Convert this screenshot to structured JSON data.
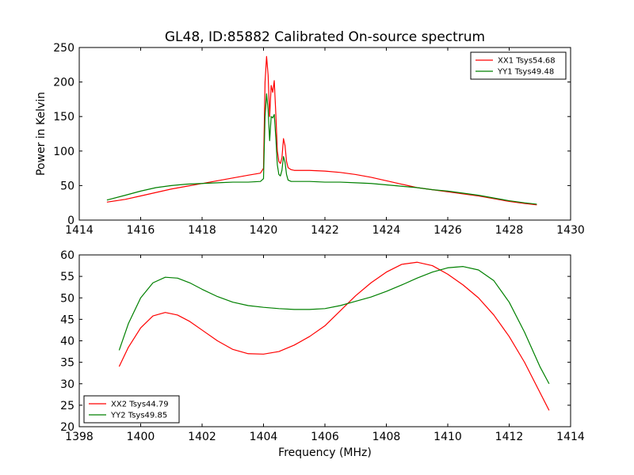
{
  "figure": {
    "background": "#ffffff"
  },
  "chart_data": [
    {
      "type": "line",
      "title": "GL48, ID:85882 Calibrated On-source spectrum",
      "xlabel": "",
      "ylabel": "Power in Kelvin",
      "xlim": [
        1414,
        1430
      ],
      "ylim": [
        0,
        250
      ],
      "xticks": [
        1414,
        1416,
        1418,
        1420,
        1422,
        1424,
        1426,
        1428,
        1430
      ],
      "yticks": [
        0,
        50,
        100,
        150,
        200,
        250
      ],
      "grid": false,
      "legend_position": "top-right",
      "series": [
        {
          "name": "XX1 Tsys54.68",
          "color": "#ff0000",
          "x": [
            1414.9,
            1415.5,
            1416.0,
            1416.5,
            1417.0,
            1417.5,
            1418.0,
            1418.5,
            1419.0,
            1419.5,
            1419.9,
            1420.0,
            1420.05,
            1420.1,
            1420.15,
            1420.2,
            1420.25,
            1420.3,
            1420.35,
            1420.4,
            1420.45,
            1420.5,
            1420.55,
            1420.6,
            1420.65,
            1420.7,
            1420.75,
            1420.8,
            1420.9,
            1421.0,
            1421.5,
            1422.0,
            1422.5,
            1423.0,
            1423.5,
            1424.0,
            1424.5,
            1425.0,
            1425.5,
            1426.0,
            1426.5,
            1427.0,
            1427.5,
            1428.0,
            1428.5,
            1428.9
          ],
          "y": [
            26,
            30,
            35,
            40,
            45,
            49,
            53,
            57,
            61,
            65,
            68,
            75,
            200,
            237,
            210,
            150,
            195,
            185,
            202,
            155,
            100,
            85,
            82,
            90,
            118,
            108,
            85,
            76,
            73,
            72,
            72,
            71,
            69,
            66,
            62,
            57,
            52,
            47,
            44,
            41,
            38,
            35,
            31,
            27,
            24,
            22
          ]
        },
        {
          "name": "YY1 Tsys49.48",
          "color": "#008000",
          "x": [
            1414.9,
            1415.5,
            1416.0,
            1416.5,
            1417.0,
            1417.5,
            1418.0,
            1418.5,
            1419.0,
            1419.5,
            1419.9,
            1420.0,
            1420.05,
            1420.1,
            1420.15,
            1420.2,
            1420.25,
            1420.3,
            1420.35,
            1420.4,
            1420.45,
            1420.5,
            1420.55,
            1420.6,
            1420.65,
            1420.7,
            1420.75,
            1420.8,
            1420.9,
            1421.0,
            1421.5,
            1422.0,
            1422.5,
            1423.0,
            1423.5,
            1424.0,
            1424.5,
            1425.0,
            1425.5,
            1426.0,
            1426.5,
            1427.0,
            1427.5,
            1428.0,
            1428.5,
            1428.9
          ],
          "y": [
            29,
            36,
            42,
            47,
            50,
            52,
            53,
            54,
            55,
            55,
            56,
            60,
            150,
            183,
            160,
            115,
            150,
            148,
            153,
            120,
            80,
            66,
            64,
            72,
            92,
            84,
            66,
            58,
            56,
            56,
            56,
            55,
            55,
            54,
            53,
            51,
            49,
            47,
            44,
            42,
            39,
            36,
            32,
            28,
            25,
            23
          ]
        }
      ]
    },
    {
      "type": "line",
      "title": "",
      "xlabel": "Frequency (MHz)",
      "ylabel": "",
      "xlim": [
        1398,
        1414
      ],
      "ylim": [
        20,
        60
      ],
      "xticks": [
        1398,
        1400,
        1402,
        1404,
        1406,
        1408,
        1410,
        1412,
        1414
      ],
      "yticks": [
        20,
        25,
        30,
        35,
        40,
        45,
        50,
        55,
        60
      ],
      "grid": false,
      "legend_position": "bottom-left",
      "series": [
        {
          "name": "XX2 Tsys44.79",
          "color": "#ff0000",
          "x": [
            1399.3,
            1399.6,
            1400.0,
            1400.4,
            1400.8,
            1401.2,
            1401.6,
            1402.0,
            1402.5,
            1403.0,
            1403.5,
            1404.0,
            1404.5,
            1405.0,
            1405.5,
            1406.0,
            1406.5,
            1407.0,
            1407.5,
            1408.0,
            1408.5,
            1409.0,
            1409.5,
            1410.0,
            1410.5,
            1411.0,
            1411.5,
            1412.0,
            1412.5,
            1413.0,
            1413.3
          ],
          "y": [
            34,
            38.5,
            43,
            45.8,
            46.6,
            46,
            44.5,
            42.5,
            40,
            38,
            37,
            36.9,
            37.5,
            39,
            41,
            43.5,
            47,
            50.5,
            53.5,
            56,
            57.8,
            58.3,
            57.5,
            55.5,
            53,
            50,
            46,
            41,
            35,
            28,
            23.8
          ]
        },
        {
          "name": "YY2 Tsys49.85",
          "color": "#008000",
          "x": [
            1399.3,
            1399.6,
            1400.0,
            1400.4,
            1400.8,
            1401.2,
            1401.6,
            1402.0,
            1402.5,
            1403.0,
            1403.5,
            1404.0,
            1404.5,
            1405.0,
            1405.5,
            1406.0,
            1406.5,
            1407.0,
            1407.5,
            1408.0,
            1408.5,
            1409.0,
            1409.5,
            1410.0,
            1410.5,
            1411.0,
            1411.5,
            1412.0,
            1412.5,
            1413.0,
            1413.3
          ],
          "y": [
            37.8,
            44,
            50,
            53.5,
            54.8,
            54.6,
            53.5,
            52,
            50.3,
            49,
            48.2,
            47.8,
            47.5,
            47.3,
            47.3,
            47.5,
            48.2,
            49.2,
            50.2,
            51.5,
            53,
            54.6,
            56,
            57,
            57.3,
            56.5,
            54,
            49,
            42,
            34,
            30
          ]
        }
      ]
    }
  ]
}
